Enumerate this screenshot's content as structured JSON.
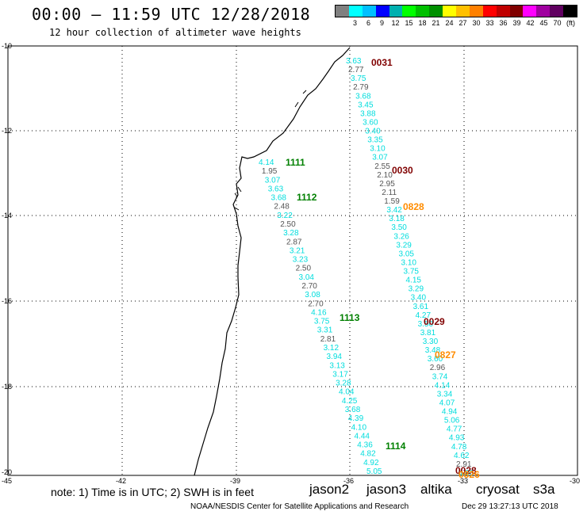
{
  "header": {
    "title": "00:00 – 11:59 UTC 12/28/2018",
    "subtitle": "12 hour collection of altimeter wave heights"
  },
  "legend": {
    "colors": [
      "#808080",
      "#00ffff",
      "#00c0ff",
      "#0000ff",
      "#00b0b0",
      "#00ff00",
      "#00c000",
      "#009000",
      "#ffff00",
      "#ffc000",
      "#ff8000",
      "#ff0000",
      "#c00000",
      "#800000",
      "#ff00ff",
      "#a000a0",
      "#600060",
      "#000000"
    ],
    "labels": [
      "3",
      "6",
      "9",
      "12",
      "15",
      "18",
      "21",
      "24",
      "27",
      "30",
      "33",
      "36",
      "39",
      "42",
      "45",
      "70",
      "(ft)"
    ]
  },
  "axes": {
    "lat_labels": [
      "-10",
      "-12",
      "-14",
      "-16",
      "-18",
      "-20"
    ],
    "lon_labels": [
      "-45",
      "-42",
      "-39",
      "-36",
      "-33",
      "-30"
    ]
  },
  "passes": [
    {
      "label": "1111",
      "color": "#008000"
    },
    {
      "label": "1112",
      "color": "#008000"
    },
    {
      "label": "1113",
      "color": "#008000"
    },
    {
      "label": "1114",
      "color": "#008000"
    },
    {
      "label": "0031",
      "color": "#800000"
    },
    {
      "label": "0030",
      "color": "#800000"
    },
    {
      "label": "0029",
      "color": "#800000"
    },
    {
      "label": "0028",
      "color": "#800000"
    },
    {
      "label": "0828",
      "color": "#ff8c00"
    },
    {
      "label": "0827",
      "color": "#ff8c00"
    },
    {
      "label": "0826",
      "color": "#ff8c00"
    }
  ],
  "track_jason3": [
    "4.14",
    "1.95",
    "3.07",
    "3.63",
    "3.68",
    "2.48",
    "3.22",
    "2.50",
    "3.28",
    "2.87",
    "3.21",
    "3.23",
    "2.50",
    "3.04",
    "2.70",
    "3.08",
    "2.70",
    "4.16",
    "3.75",
    "3.31",
    "2.81",
    "3.12",
    "3.94",
    "3.13",
    "3.17",
    "3.28",
    "4.04",
    "4.25",
    "3.68",
    "4.39",
    "4.10",
    "4.44",
    "4.36",
    "4.82",
    "4.92",
    "5.05"
  ],
  "track_east": [
    "3.63",
    "2.77",
    "3.75",
    "2.79",
    "3.68",
    "3.45",
    "3.88",
    "3.60",
    "3.40",
    "3.35",
    "3.10",
    "3.07",
    "2.55",
    "2.10",
    "2.95",
    "2.11",
    "1.59",
    "3.42",
    "3.18",
    "3.50",
    "3.26",
    "3.29",
    "3.05",
    "3.10",
    "3.75",
    "4.15",
    "3.29",
    "3.40",
    "3.61",
    "4.27",
    "3.50",
    "3.81",
    "3.30",
    "3.48",
    "3.60",
    "2.96",
    "3.74",
    "4.14",
    "3.34",
    "4.07",
    "4.94",
    "5.06",
    "4.77",
    "4.93",
    "4.78",
    "4.62",
    "2.91",
    "4.06"
  ],
  "footer": {
    "note": "note: 1) Time is in UTC; 2) SWH is in feet",
    "satellites": [
      {
        "name": "jason2",
        "color": "#0000ff"
      },
      {
        "name": "jason3",
        "color": "#008000"
      },
      {
        "name": "altika",
        "color": "#ff8c00"
      },
      {
        "name": "cryosat",
        "color": "#ff0000"
      },
      {
        "name": "s3a",
        "color": "#800000"
      }
    ],
    "credit": "NOAA/NESDIS Center for Satellite Applications and Research",
    "stamp": "Dec 29 13:27:13 UTC 2018"
  }
}
